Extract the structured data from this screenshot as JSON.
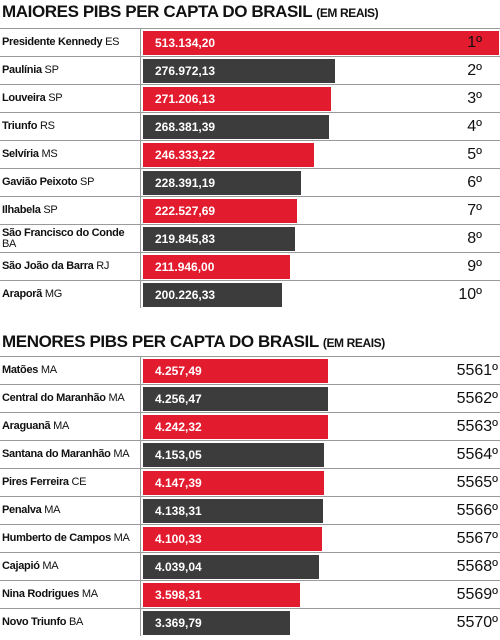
{
  "chart_data": [
    {
      "type": "bar",
      "orientation": "horizontal",
      "title": "MAIORES PIBS PER CAPTA DO BRASIL",
      "subtitle": "(EM REAIS)",
      "categories": [
        "Presidente Kennedy",
        "Paulínia",
        "Louveira",
        "Triunfo",
        "Selvíria",
        "Gavião Peixoto",
        "Ilhabela",
        "São Francisco do Conde",
        "São João da Barra",
        "Araporã"
      ],
      "states": [
        "ES",
        "SP",
        "SP",
        "RS",
        "MS",
        "SP",
        "SP",
        "BA",
        "RJ",
        "MG"
      ],
      "values": [
        513134.2,
        276972.13,
        271206.13,
        268381.39,
        246333.22,
        228391.19,
        222527.69,
        219845.83,
        211946.0,
        200226.33
      ],
      "value_labels": [
        "513.134,20",
        "276.972,13",
        "271.206,13",
        "268.381,39",
        "246.333,22",
        "228.391,19",
        "222.527,69",
        "219.845,83",
        "211.946,00",
        "200.226,33"
      ],
      "ranks": [
        "1º",
        "2º",
        "3º",
        "4º",
        "5º",
        "6º",
        "7º",
        "8º",
        "9º",
        "10º"
      ],
      "colors": [
        "#e31b2e",
        "#3c3c3c",
        "#e31b2e",
        "#3c3c3c",
        "#e31b2e",
        "#3c3c3c",
        "#e31b2e",
        "#3c3c3c",
        "#e31b2e",
        "#3c3c3c"
      ],
      "xlim": [
        0,
        515000
      ]
    },
    {
      "type": "bar",
      "orientation": "horizontal",
      "title": "MENORES  PIBS  PER CAPTA DO BRASIL",
      "subtitle": "(EM REAIS)",
      "categories": [
        "Matões",
        "Central do Maranhão",
        "Araguanã",
        "Santana do Maranhão",
        "Pires Ferreira",
        "Penalva",
        "Humberto de Campos",
        "Cajapió",
        "Nina Rodrigues",
        "Novo Triunfo"
      ],
      "states": [
        "MA",
        "MA",
        "MA",
        "MA",
        "CE",
        "MA",
        "MA",
        "MA",
        "MA",
        "BA"
      ],
      "values": [
        4257.49,
        4256.47,
        4242.32,
        4153.05,
        4147.39,
        4138.31,
        4100.33,
        4039.04,
        3598.31,
        3369.79
      ],
      "value_labels": [
        "4.257,49",
        "4.256,47",
        "4.242,32",
        "4.153,05",
        "4.147,39",
        "4.138,31",
        "4.100,33",
        "4.039,04",
        "3.598,31",
        "3.369,79"
      ],
      "ranks": [
        "5561º",
        "5562º",
        "5563º",
        "5564º",
        "5565º",
        "5566º",
        "5567º",
        "5568º",
        "5569º",
        "5570º"
      ],
      "colors": [
        "#e31b2e",
        "#3c3c3c",
        "#e31b2e",
        "#3c3c3c",
        "#e31b2e",
        "#3c3c3c",
        "#e31b2e",
        "#3c3c3c",
        "#e31b2e",
        "#3c3c3c"
      ],
      "xlim": [
        0,
        8200
      ]
    }
  ]
}
